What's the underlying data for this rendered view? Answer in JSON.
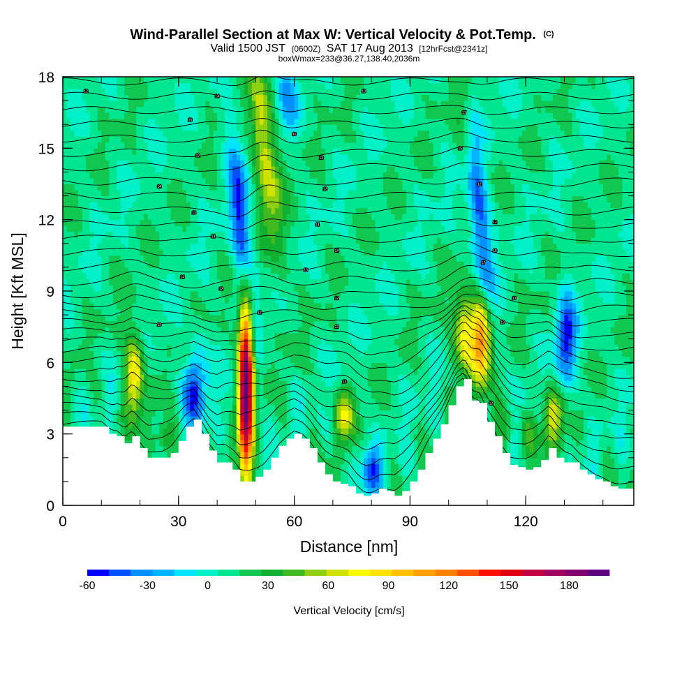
{
  "chart_data": {
    "type": "heatmap",
    "title": {
      "main": "Wind-Parallel Section at Max W: Vertical Velocity & Pot.Temp.",
      "main_mark": "(C)",
      "valid_prefix": "Valid 1500 JST",
      "valid_z": "(0600Z)",
      "valid_date": "SAT 17 Aug 2013",
      "forecast": "[12hrFcst@2341z]",
      "box": "boxWmax=233@36.27,138.40,2036m"
    },
    "xlabel": "Distance [nm]",
    "ylabel": "Height [Kft MSL]",
    "xlim": [
      0,
      148
    ],
    "ylim": [
      0,
      18
    ],
    "x_ticks": [
      0,
      30,
      60,
      90,
      120
    ],
    "x_tick_labels": [
      "0",
      "30",
      "60",
      "90",
      "120"
    ],
    "y_ticks": [
      0,
      3,
      6,
      9,
      12,
      15,
      18
    ],
    "y_tick_labels": [
      "0",
      "3",
      "6",
      "9",
      "12",
      "15",
      "18"
    ],
    "grid": false,
    "colorbar": {
      "label": "Vertical Velocity [cm/s]",
      "min": -60,
      "max": 200,
      "step": 10,
      "tick_values": [
        -60,
        -30,
        0,
        30,
        60,
        90,
        120,
        150,
        180
      ],
      "tick_labels": [
        "-60",
        "-30",
        "0",
        "30",
        "60",
        "90",
        "120",
        "150",
        "180"
      ],
      "colors": [
        "#0000ff",
        "#0050ff",
        "#0090ff",
        "#00b4ff",
        "#00e4ff",
        "#00f0c8",
        "#00e690",
        "#10c850",
        "#10b030",
        "#40b820",
        "#90d010",
        "#d0e000",
        "#f8f800",
        "#ffe000",
        "#ffc000",
        "#ffa000",
        "#ff8000",
        "#ff5000",
        "#ff1000",
        "#e00010",
        "#c00040",
        "#a00060",
        "#800070",
        "#600080"
      ]
    },
    "background_value": 5,
    "terrain": [
      [
        0,
        3.3
      ],
      [
        10,
        3.3
      ],
      [
        12,
        3.0
      ],
      [
        13,
        2.9
      ],
      [
        14,
        2.9
      ],
      [
        16,
        2.6
      ],
      [
        18,
        2.9
      ],
      [
        20,
        2.4
      ],
      [
        22,
        2.0
      ],
      [
        24,
        2.0
      ],
      [
        26,
        2.0
      ],
      [
        28,
        2.2
      ],
      [
        30,
        2.7
      ],
      [
        32,
        3.3
      ],
      [
        34,
        3.6
      ],
      [
        36,
        3.0
      ],
      [
        38,
        2.3
      ],
      [
        40,
        1.8
      ],
      [
        42,
        1.8
      ],
      [
        44,
        1.5
      ],
      [
        46,
        1.0
      ],
      [
        48,
        1.0
      ],
      [
        50,
        1.2
      ],
      [
        52,
        1.5
      ],
      [
        54,
        2.0
      ],
      [
        56,
        2.5
      ],
      [
        58,
        2.8
      ],
      [
        60,
        3.0
      ],
      [
        62,
        2.8
      ],
      [
        64,
        2.4
      ],
      [
        66,
        1.8
      ],
      [
        68,
        1.3
      ],
      [
        70,
        1.0
      ],
      [
        72,
        0.9
      ],
      [
        74,
        0.8
      ],
      [
        76,
        0.5
      ],
      [
        78,
        0.4
      ],
      [
        80,
        0.5
      ],
      [
        82,
        0.7
      ],
      [
        84,
        0.6
      ],
      [
        86,
        0.4
      ],
      [
        88,
        0.6
      ],
      [
        90,
        1.0
      ],
      [
        92,
        1.5
      ],
      [
        94,
        2.2
      ],
      [
        96,
        2.8
      ],
      [
        98,
        3.4
      ],
      [
        100,
        4.2
      ],
      [
        102,
        5.0
      ],
      [
        104,
        5.3
      ],
      [
        106,
        4.4
      ],
      [
        108,
        4.3
      ],
      [
        110,
        3.5
      ],
      [
        112,
        2.9
      ],
      [
        114,
        2.2
      ],
      [
        116,
        1.7
      ],
      [
        118,
        1.6
      ],
      [
        120,
        1.5
      ],
      [
        122,
        1.6
      ],
      [
        124,
        1.9
      ],
      [
        126,
        2.4
      ],
      [
        128,
        2.0
      ],
      [
        130,
        1.8
      ],
      [
        132,
        1.8
      ],
      [
        134,
        1.5
      ],
      [
        136,
        1.3
      ],
      [
        138,
        1.1
      ],
      [
        140,
        1.0
      ],
      [
        142,
        0.8
      ],
      [
        144,
        0.7
      ],
      [
        146,
        0.7
      ],
      [
        148,
        0.7
      ]
    ],
    "updrafts": [
      {
        "x": 18.5,
        "z": 5.5,
        "value": 70,
        "zmin": 3.6,
        "zmax": 7.4
      },
      {
        "x": 27.0,
        "z": 2.8,
        "value": 35,
        "zmin": 2.0,
        "zmax": 3.6
      },
      {
        "x": 47.5,
        "z": 5.0,
        "value": 190,
        "zmin": 1.2,
        "zmax": 9.4
      },
      {
        "x": 51.5,
        "z": 15.5,
        "value": 55,
        "zmin": 10.5,
        "zmax": 18.0
      },
      {
        "x": 55.0,
        "z": 13.0,
        "value": 30,
        "zmin": 9.0,
        "zmax": 17.0
      },
      {
        "x": 73.0,
        "z": 3.8,
        "value": 55,
        "zmin": 2.6,
        "zmax": 5.0
      },
      {
        "x": 104.0,
        "z": 7.2,
        "value": 75,
        "zmin": 5.4,
        "zmax": 8.9
      },
      {
        "x": 108.5,
        "z": 7.0,
        "value": 105,
        "zmin": 5.1,
        "zmax": 9.0
      },
      {
        "x": 104.5,
        "z": 16.0,
        "value": 25,
        "zmin": 12.5,
        "zmax": 18.0
      },
      {
        "x": 114.0,
        "z": 3.2,
        "value": 30,
        "zmin": 2.0,
        "zmax": 4.4
      },
      {
        "x": 127.0,
        "z": 3.7,
        "value": 55,
        "zmin": 2.2,
        "zmax": 5.0
      },
      {
        "x": 121.0,
        "z": 3.0,
        "value": 25,
        "zmin": 2.0,
        "zmax": 4.0
      }
    ],
    "downdrafts": [
      {
        "x": 35.0,
        "z": 5.0,
        "value": -40,
        "zmin": 3.0,
        "zmax": 7.0
      },
      {
        "x": 32.0,
        "z": 4.6,
        "value": -20,
        "zmin": 3.5,
        "zmax": 6.0
      },
      {
        "x": 46.5,
        "z": 11.5,
        "value": -55,
        "zmin": 9.5,
        "zmax": 18.0
      },
      {
        "x": 80.0,
        "z": 1.5,
        "value": -45,
        "zmin": 0.5,
        "zmax": 2.6
      },
      {
        "x": 108.0,
        "z": 12.0,
        "value": -50,
        "zmin": 9.0,
        "zmax": 18.0
      },
      {
        "x": 130.5,
        "z": 7.0,
        "value": -55,
        "zmin": 5.5,
        "zmax": 9.5
      },
      {
        "x": 58.0,
        "z": 17.0,
        "value": -30,
        "zmin": 15.0,
        "zmax": 18.0
      }
    ],
    "isentrope_labels": [
      {
        "text": "12",
        "x": 6,
        "z": 17.4
      },
      {
        "text": "14",
        "x": 40,
        "z": 17.2
      },
      {
        "text": "13",
        "x": 78,
        "z": 17.4
      },
      {
        "text": "16",
        "x": 60,
        "z": 15.6
      },
      {
        "text": "16",
        "x": 33,
        "z": 16.2
      },
      {
        "text": "17",
        "x": 104,
        "z": 16.5
      },
      {
        "text": "12",
        "x": 35,
        "z": 14.7
      },
      {
        "text": "15",
        "x": 103,
        "z": 15.0
      },
      {
        "text": "13",
        "x": 67,
        "z": 14.6
      },
      {
        "text": "14",
        "x": 25,
        "z": 13.4
      },
      {
        "text": "13",
        "x": 68,
        "z": 13.3
      },
      {
        "text": "12",
        "x": 108,
        "z": 13.5
      },
      {
        "text": "13",
        "x": 34,
        "z": 12.3
      },
      {
        "text": "14",
        "x": 66,
        "z": 11.8
      },
      {
        "text": "12",
        "x": 112,
        "z": 11.9
      },
      {
        "text": "14",
        "x": 39,
        "z": 11.3
      },
      {
        "text": "14",
        "x": 71,
        "z": 10.7
      },
      {
        "text": "16",
        "x": 112,
        "z": 10.7
      },
      {
        "text": "13",
        "x": 63,
        "z": 9.9
      },
      {
        "text": "17",
        "x": 109,
        "z": 10.2
      },
      {
        "text": "14",
        "x": 31,
        "z": 9.6
      },
      {
        "text": "12",
        "x": 41,
        "z": 9.1
      },
      {
        "text": "12",
        "x": 71,
        "z": 8.7
      },
      {
        "text": "13",
        "x": 117,
        "z": 8.7
      },
      {
        "text": "12",
        "x": 51,
        "z": 8.1
      },
      {
        "text": "13",
        "x": 25,
        "z": 7.6
      },
      {
        "text": "13",
        "x": 71,
        "z": 7.5
      },
      {
        "text": "13",
        "x": 114,
        "z": 7.7
      },
      {
        "text": "13",
        "x": 73,
        "z": 5.2
      },
      {
        "text": "12",
        "x": 111,
        "z": 4.3
      }
    ]
  }
}
